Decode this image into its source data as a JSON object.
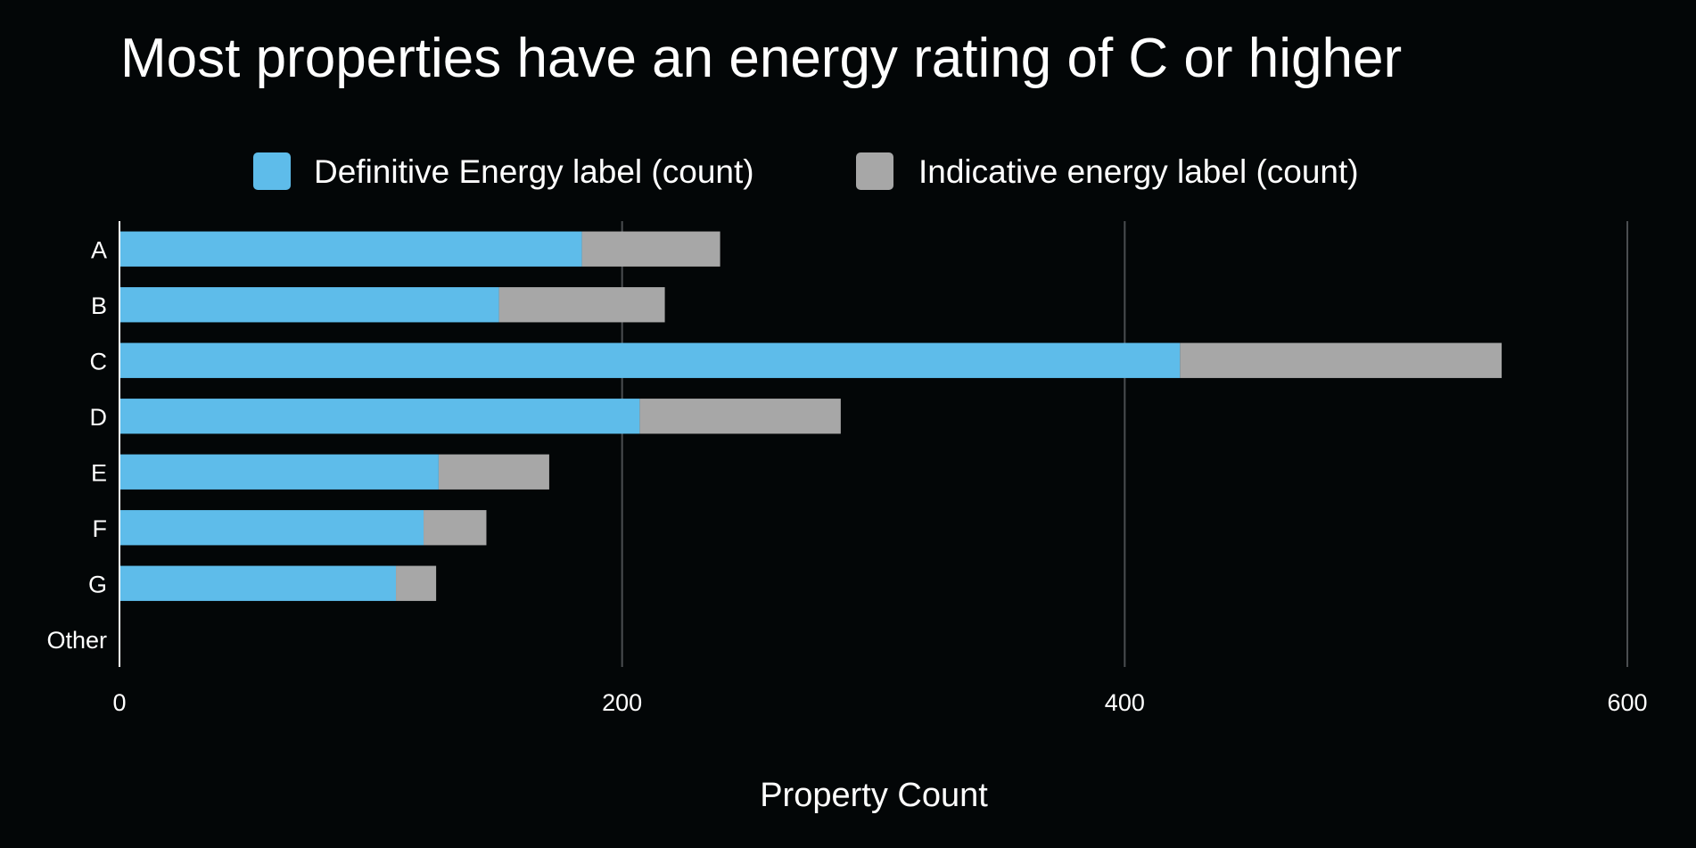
{
  "chart_data": {
    "type": "bar",
    "orientation": "horizontal",
    "stacked": true,
    "title": "Most properties have an energy rating of C or higher",
    "xlabel": "Property Count",
    "ylabel": "",
    "categories": [
      "A",
      "B",
      "C",
      "D",
      "E",
      "F",
      "G",
      "Other"
    ],
    "series": [
      {
        "name": "Definitive Energy label (count)",
        "color": "#5ebcea",
        "values": [
          184,
          151,
          422,
          207,
          127,
          121,
          110,
          0
        ]
      },
      {
        "name": "Indicative energy label (count)",
        "color": "#a7a7a7",
        "values": [
          55,
          66,
          128,
          80,
          44,
          25,
          16,
          0
        ]
      }
    ],
    "xlim": [
      0,
      600
    ],
    "xticks": [
      "0",
      "200",
      "400",
      "600"
    ],
    "xtick_values": [
      0,
      200,
      400,
      600
    ],
    "grid": "vertical",
    "legend_position": "top"
  }
}
